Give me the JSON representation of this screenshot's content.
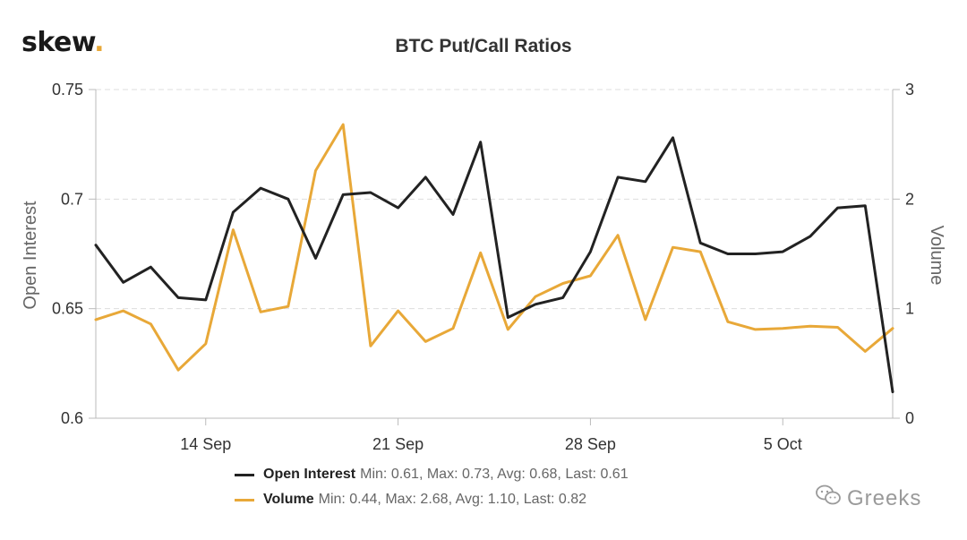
{
  "brand": {
    "name": "skew",
    "dot": "."
  },
  "watermark": {
    "text": "Greeks"
  },
  "chart_data": {
    "type": "line",
    "title": "BTC Put/Call Ratios",
    "ylabel_left": "Open Interest",
    "ylabel_right": "Volume",
    "ylim_left": [
      0.6,
      0.75
    ],
    "ylim_right": [
      0,
      3
    ],
    "yticks_left": [
      "0.6",
      "0.65",
      "0.7",
      "0.75"
    ],
    "yticks_right": [
      "0",
      "1",
      "2",
      "3"
    ],
    "x_tick_labels": [
      "14 Sep",
      "21 Sep",
      "28 Sep",
      "5 Oct"
    ],
    "x": [
      "Sep 10",
      "Sep 11",
      "Sep 12",
      "Sep 13",
      "Sep 14",
      "Sep 15",
      "Sep 16",
      "Sep 17",
      "Sep 18",
      "Sep 19",
      "Sep 20",
      "Sep 21",
      "Sep 22",
      "Sep 23",
      "Sep 24",
      "Sep 25",
      "Sep 26",
      "Sep 27",
      "Sep 28",
      "Sep 29",
      "Sep 30",
      "Oct 1",
      "Oct 2",
      "Oct 3",
      "Oct 4",
      "Oct 5",
      "Oct 6",
      "Oct 7",
      "Oct 8",
      "Oct 9"
    ],
    "grid": true,
    "series": [
      {
        "name": "Open Interest",
        "axis": "left",
        "color": "#222222",
        "values": [
          0.679,
          0.662,
          0.669,
          0.655,
          0.654,
          0.694,
          0.705,
          0.7,
          0.673,
          0.702,
          0.703,
          0.696,
          0.71,
          0.693,
          0.726,
          0.646,
          0.652,
          0.655,
          0.676,
          0.71,
          0.708,
          0.728,
          0.68,
          0.675,
          0.675,
          0.676,
          0.683,
          0.696,
          0.697,
          0.612
        ]
      },
      {
        "name": "Volume",
        "axis": "right",
        "color": "#e8a838",
        "values": [
          0.9,
          0.98,
          0.86,
          0.44,
          0.68,
          1.72,
          0.97,
          1.02,
          2.26,
          2.68,
          0.66,
          0.98,
          0.7,
          0.82,
          1.51,
          0.81,
          1.11,
          1.23,
          1.3,
          1.67,
          0.9,
          1.56,
          1.52,
          0.88,
          0.81,
          0.82,
          0.84,
          0.83,
          0.61,
          0.82
        ]
      }
    ],
    "legend": [
      {
        "name": "Open Interest",
        "stats": "Min: 0.61, Max: 0.73, Avg: 0.68, Last: 0.61"
      },
      {
        "name": "Volume",
        "stats": "Min: 0.44, Max: 2.68, Avg: 1.10, Last: 0.82"
      }
    ]
  }
}
